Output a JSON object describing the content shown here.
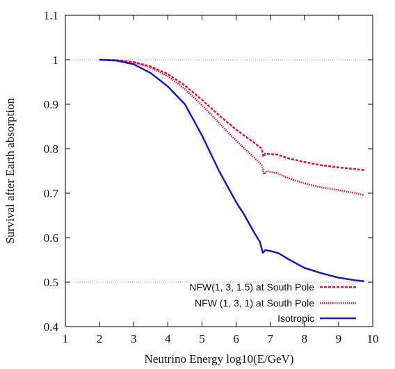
{
  "chart_data": {
    "type": "line",
    "xlabel": "Neutrino Energy log10(E/GeV)",
    "ylabel": "Survival after Earth absorption",
    "xlim": [
      1,
      10
    ],
    "ylim": [
      0.4,
      1.1
    ],
    "x_ticks": [
      1,
      2,
      3,
      4,
      5,
      6,
      7,
      8,
      9,
      10
    ],
    "y_ticks": [
      0.4,
      0.5,
      0.6,
      0.7,
      0.8,
      0.9,
      1,
      1.1
    ],
    "x_tick_labels": [
      "1",
      "2",
      "3",
      "4",
      "5",
      "6",
      "7",
      "8",
      "9",
      "10"
    ],
    "y_tick_labels": [
      "0.4",
      "0.5",
      "0.6",
      "0.7",
      "0.8",
      "0.9",
      "1",
      "1.1"
    ],
    "reference_lines": [
      {
        "y": 1.0,
        "style": "dotted",
        "color": "#999999"
      },
      {
        "y": 0.5,
        "style": "dotted",
        "color": "#999999"
      }
    ],
    "legend_position": "bottom-right",
    "series": [
      {
        "name": "NFW(1, 3, 1.5) at South Pole",
        "color": "#e0103a",
        "style": "dashed",
        "points": [
          [
            2.0,
            1.0
          ],
          [
            2.5,
            0.999
          ],
          [
            3.0,
            0.995
          ],
          [
            3.5,
            0.985
          ],
          [
            4.0,
            0.968
          ],
          [
            4.5,
            0.942
          ],
          [
            5.0,
            0.91
          ],
          [
            5.5,
            0.875
          ],
          [
            6.0,
            0.843
          ],
          [
            6.5,
            0.815
          ],
          [
            6.75,
            0.8
          ],
          [
            6.8,
            0.782
          ],
          [
            6.85,
            0.789
          ],
          [
            7.0,
            0.788
          ],
          [
            7.2,
            0.787
          ],
          [
            7.5,
            0.779
          ],
          [
            8.0,
            0.77
          ],
          [
            8.5,
            0.763
          ],
          [
            9.0,
            0.758
          ],
          [
            9.5,
            0.754
          ],
          [
            9.75,
            0.752
          ]
        ]
      },
      {
        "name": "NFW (1, 3, 1) at South Pole",
        "color": "#e0103a",
        "style": "dotted",
        "points": [
          [
            2.0,
            1.0
          ],
          [
            2.5,
            0.999
          ],
          [
            3.0,
            0.994
          ],
          [
            3.5,
            0.982
          ],
          [
            4.0,
            0.963
          ],
          [
            4.5,
            0.934
          ],
          [
            5.0,
            0.898
          ],
          [
            5.5,
            0.858
          ],
          [
            6.0,
            0.818
          ],
          [
            6.5,
            0.782
          ],
          [
            6.75,
            0.763
          ],
          [
            6.82,
            0.743
          ],
          [
            6.9,
            0.75
          ],
          [
            7.0,
            0.748
          ],
          [
            7.2,
            0.745
          ],
          [
            7.5,
            0.735
          ],
          [
            8.0,
            0.722
          ],
          [
            8.5,
            0.713
          ],
          [
            9.0,
            0.707
          ],
          [
            9.5,
            0.7
          ],
          [
            9.75,
            0.696
          ]
        ]
      },
      {
        "name": "Isotropic",
        "color": "#1a1ab0",
        "style": "solid",
        "points": [
          [
            2.0,
            1.0
          ],
          [
            2.5,
            0.998
          ],
          [
            3.0,
            0.99
          ],
          [
            3.5,
            0.97
          ],
          [
            4.0,
            0.94
          ],
          [
            4.5,
            0.9
          ],
          [
            5.0,
            0.83
          ],
          [
            5.5,
            0.75
          ],
          [
            6.0,
            0.68
          ],
          [
            6.25,
            0.65
          ],
          [
            6.5,
            0.615
          ],
          [
            6.7,
            0.59
          ],
          [
            6.78,
            0.566
          ],
          [
            6.85,
            0.572
          ],
          [
            7.0,
            0.57
          ],
          [
            7.25,
            0.565
          ],
          [
            7.5,
            0.553
          ],
          [
            8.0,
            0.532
          ],
          [
            8.5,
            0.52
          ],
          [
            9.0,
            0.51
          ],
          [
            9.5,
            0.504
          ],
          [
            9.75,
            0.502
          ]
        ]
      }
    ]
  }
}
